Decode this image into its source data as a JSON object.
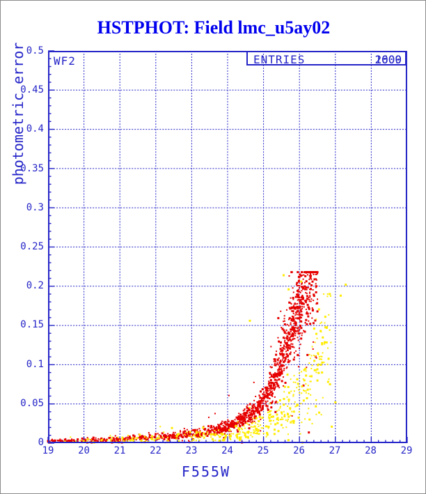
{
  "window": {
    "title": "HSTPHOT: Field lmc_u5ay02"
  },
  "plot": {
    "camera_label": "WF2",
    "entries": {
      "label": "ENTRIES",
      "values": [
        "2000",
        "1609"
      ]
    },
    "colors": {
      "axis_blue": "#2424c8",
      "title_blue": "#0000ee",
      "series_red": "#e60000",
      "series_yellow": "#ffec00",
      "background": "#ffffff"
    }
  },
  "chart_data": {
    "type": "scatter",
    "title": "HSTPHOT: Field lmc_u5ay02",
    "xlabel": "F555W",
    "ylabel": "photometric error",
    "xlim": [
      19,
      29
    ],
    "ylim": [
      0,
      0.5
    ],
    "grid": "dashed blue gridlines at every major tick, both axes",
    "legend_position": "none",
    "x_axis": {
      "major_tick_labels": [
        "19",
        "20",
        "21",
        "22",
        "23",
        "24",
        "25",
        "26",
        "27",
        "28",
        "29"
      ],
      "minor_per_major": 4
    },
    "y_axis": {
      "major_tick_labels": [
        "0",
        "0.05",
        "0.1",
        "0.15",
        "0.2",
        "0.25",
        "0.3",
        "0.35",
        "0.4",
        "0.45",
        "0.5"
      ],
      "minor_per_major": 4
    },
    "series": [
      {
        "name": "red-points",
        "color": "#e60000",
        "n": 1500,
        "description": "photometric error vs F555W magnitude, dense rising sequence",
        "trend": [
          [
            19,
            0.0025
          ],
          [
            20,
            0.0035
          ],
          [
            21,
            0.0048
          ],
          [
            22,
            0.0075
          ],
          [
            22.5,
            0.0095
          ],
          [
            23,
            0.012
          ],
          [
            23.5,
            0.0155
          ],
          [
            24,
            0.021
          ],
          [
            24.5,
            0.032
          ],
          [
            24.8,
            0.042
          ],
          [
            25,
            0.055
          ],
          [
            25.2,
            0.07
          ],
          [
            25.5,
            0.105
          ],
          [
            25.8,
            0.145
          ],
          [
            26,
            0.172
          ],
          [
            26.2,
            0.193
          ],
          [
            26.45,
            0.21
          ]
        ],
        "sigma_base": 0.0008,
        "sigma_frac": 0.15,
        "x_cdf": [
          [
            0,
            19
          ],
          [
            0.06,
            20.5
          ],
          [
            0.16,
            22.2
          ],
          [
            0.3,
            23.6
          ],
          [
            0.45,
            24.6
          ],
          [
            0.6,
            25.3
          ],
          [
            0.75,
            25.8
          ],
          [
            0.88,
            26.1
          ],
          [
            1,
            26.5
          ]
        ],
        "x_max": 26.5,
        "y_cap": 0.218,
        "extra_points": []
      },
      {
        "name": "yellow-points",
        "color": "#ffec00",
        "n": 430,
        "description": "sparser sequence offset to fainter magnitudes / lower errors",
        "trend": [
          [
            19,
            0.002
          ],
          [
            20,
            0.003
          ],
          [
            21,
            0.004
          ],
          [
            22,
            0.006
          ],
          [
            23,
            0.009
          ],
          [
            24,
            0.01
          ],
          [
            24.5,
            0.014
          ],
          [
            25,
            0.022
          ],
          [
            25.3,
            0.03
          ],
          [
            25.6,
            0.042
          ],
          [
            26,
            0.062
          ],
          [
            26.3,
            0.085
          ],
          [
            26.6,
            0.11
          ],
          [
            26.9,
            0.148
          ]
        ],
        "sigma_base": 0.001,
        "sigma_frac": 0.3,
        "x_cdf": [
          [
            0,
            19.3
          ],
          [
            0.07,
            21.3
          ],
          [
            0.18,
            23.0
          ],
          [
            0.32,
            24.2
          ],
          [
            0.5,
            25.1
          ],
          [
            0.7,
            25.9
          ],
          [
            0.88,
            26.5
          ],
          [
            1,
            26.9
          ]
        ],
        "x_max": 26.95,
        "y_cap": 0.19,
        "extra_points": [
          [
            25.56,
            0.214
          ],
          [
            25.7,
            0.196
          ],
          [
            26.05,
            0.206
          ],
          [
            24.62,
            0.156
          ],
          [
            26.41,
            0.146
          ],
          [
            26.72,
            0.161
          ],
          [
            26.76,
            0.147
          ],
          [
            27.15,
            0.188
          ],
          [
            27.29,
            0.202
          ],
          [
            26.63,
            0.09
          ],
          [
            26.85,
            0.075
          ],
          [
            27.0,
            0.052
          ],
          [
            26.55,
            0.039
          ],
          [
            26.9,
            0.021
          ]
        ]
      }
    ]
  }
}
